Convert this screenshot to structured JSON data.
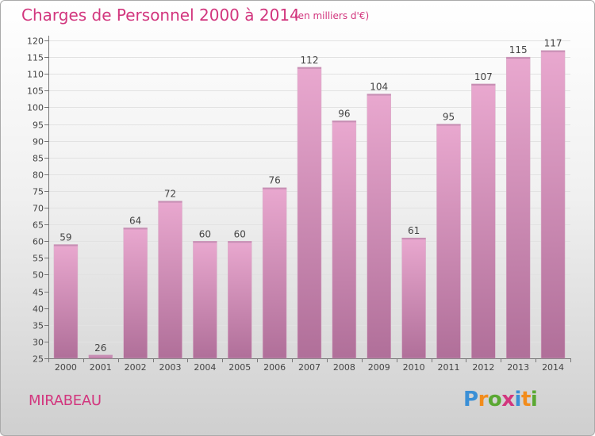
{
  "header": {
    "title": "Charges de Personnel 2000 à 2014",
    "subtitle": "(en milliers d'€)"
  },
  "footer": {
    "commune": "MIRABEAU",
    "logo_text": "Proxiti"
  },
  "colors": {
    "title": "#d2367e",
    "bar_light": "#e9a8cf",
    "bar_dark": "#b06f99",
    "logo": [
      "#3a8fd6",
      "#f28c1c",
      "#5aa832",
      "#d2367e",
      "#3a8fd6",
      "#f28c1c",
      "#5aa832"
    ]
  },
  "chart_data": {
    "type": "bar",
    "categories": [
      "2000",
      "2001",
      "2002",
      "2003",
      "2004",
      "2005",
      "2006",
      "2007",
      "2008",
      "2009",
      "2010",
      "2011",
      "2012",
      "2013",
      "2014"
    ],
    "values": [
      59,
      26,
      64,
      72,
      60,
      60,
      76,
      112,
      96,
      104,
      61,
      95,
      107,
      115,
      117
    ],
    "ylim": [
      25,
      120
    ],
    "yticks": [
      25,
      30,
      35,
      40,
      45,
      50,
      55,
      60,
      65,
      70,
      75,
      80,
      85,
      90,
      95,
      100,
      105,
      110,
      115,
      120
    ],
    "grid": true,
    "legend": "none"
  }
}
